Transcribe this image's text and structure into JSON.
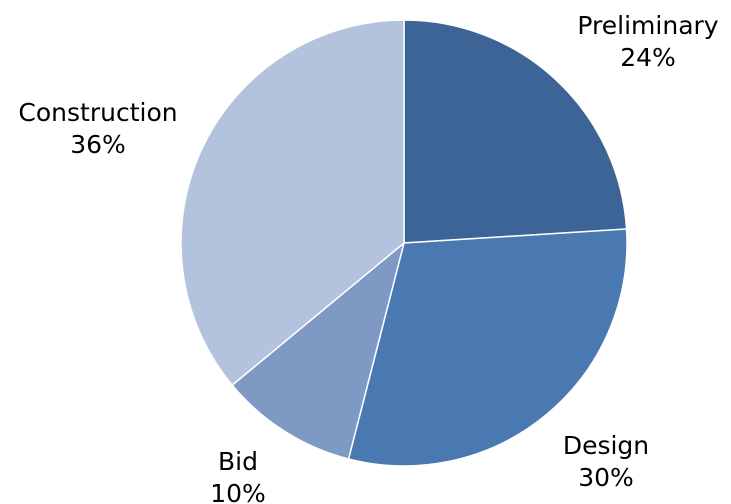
{
  "chart_data": {
    "type": "pie",
    "title": "",
    "slices": [
      {
        "label": "Preliminary",
        "value": 24,
        "value_label": "24%",
        "color": "#3C6496"
      },
      {
        "label": "Design",
        "value": 30,
        "value_label": "30%",
        "color": "#4A78B0"
      },
      {
        "label": "Bid",
        "value": 10,
        "value_label": "10%",
        "color": "#7E99C4"
      },
      {
        "label": "Construction",
        "value": 36,
        "value_label": "36%",
        "color": "#B3C3DD"
      }
    ],
    "start_angle_deg": 0,
    "direction": "clockwise",
    "legend": "none",
    "labels": "outside"
  }
}
